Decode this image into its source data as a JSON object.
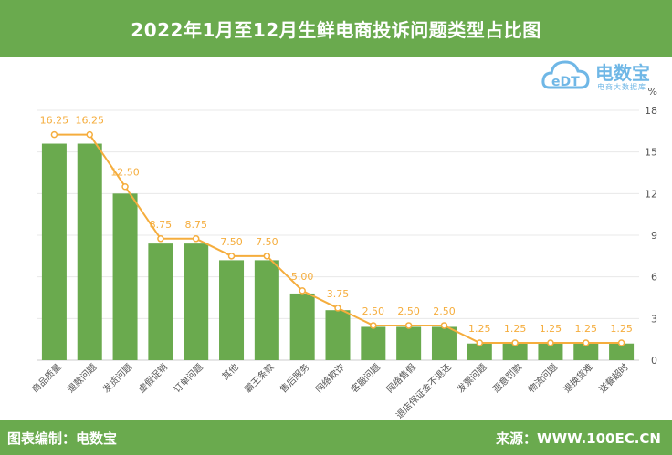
{
  "header": {
    "title": "2022年1月至12月生鲜电商投诉问题类型占比图"
  },
  "footer": {
    "left": "图表编制：电数宝",
    "right": "来源：WWW.100EC.CN"
  },
  "logo": {
    "text": "电数宝",
    "sub": "电商大数据库",
    "mark": "eDT"
  },
  "colors": {
    "accent": "#6aaa4e",
    "bar": "#6aaa4e",
    "line": "#f5ad3d",
    "label": "#f5ad3d",
    "logo": "#6fb7e6"
  },
  "chart_data": {
    "type": "bar",
    "categories": [
      "商品质量",
      "退款问题",
      "发货问题",
      "虚假促销",
      "订单问题",
      "其他",
      "霸王条款",
      "售后服务",
      "网络欺诈",
      "客服问题",
      "网络售假",
      "退店保证金不退还",
      "发票问题",
      "恶意罚款",
      "物流问题",
      "退换货难",
      "送餐超时"
    ],
    "series": [
      {
        "type": "bar",
        "values": [
          15.6,
          15.6,
          12.0,
          8.4,
          8.4,
          7.2,
          7.2,
          4.8,
          3.6,
          2.4,
          2.4,
          2.4,
          1.2,
          1.2,
          1.2,
          1.2,
          1.2
        ]
      },
      {
        "type": "line",
        "values": [
          16.25,
          16.25,
          12.5,
          8.75,
          8.75,
          7.5,
          7.5,
          5.0,
          3.75,
          2.5,
          2.5,
          2.5,
          1.25,
          1.25,
          1.25,
          1.25,
          1.25
        ],
        "labels": [
          "16.25",
          "16.25",
          "12.50",
          "8.75",
          "8.75",
          "7.50",
          "7.50",
          "5.00",
          "3.75",
          "2.50",
          "2.50",
          "2.50",
          "1.25",
          "1.25",
          "1.25",
          "1.25",
          "1.25"
        ]
      }
    ],
    "y_unit": "%",
    "yticks": [
      0,
      3,
      6,
      9,
      12,
      15,
      18
    ],
    "ylim": [
      0,
      18
    ],
    "grid": true,
    "title": "",
    "xlabel": "",
    "ylabel": ""
  }
}
